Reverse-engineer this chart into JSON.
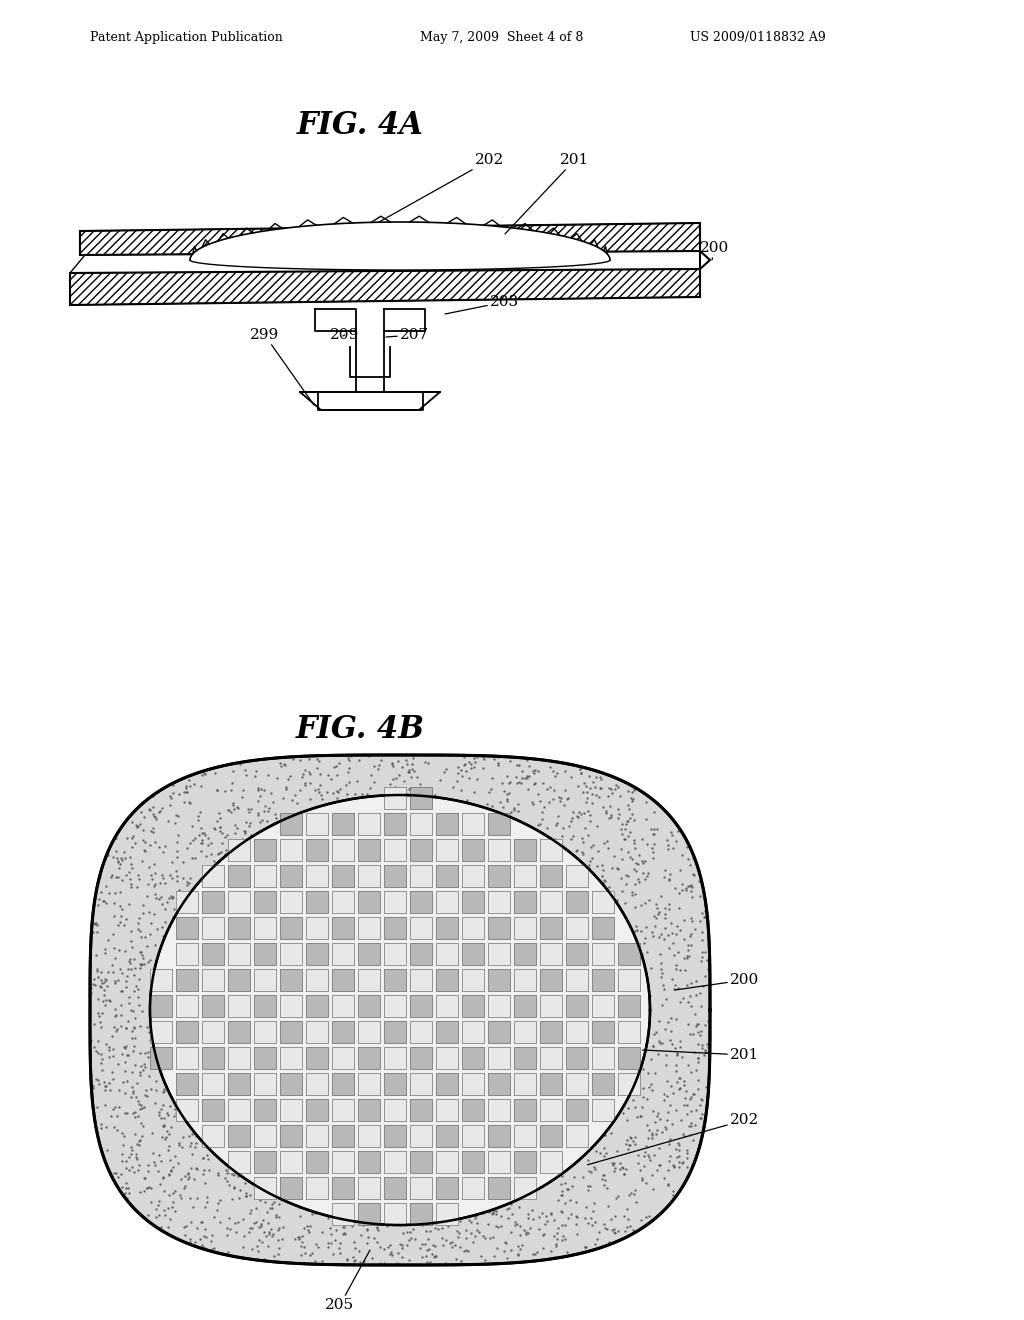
{
  "background_color": "#ffffff",
  "header_left": "Patent Application Publication",
  "header_mid": "May 7, 2009  Sheet 4 of 8",
  "header_right": "US 2009/0118832 A9",
  "fig4a_title": "FIG. 4A",
  "fig4b_title": "FIG. 4B",
  "line_color": "#000000",
  "hatch_color": "#000000",
  "stipple_color": "#888888",
  "weave_dark": "#aaaaaa",
  "weave_light": "#e8e8e8",
  "outer_fill": "#cccccc"
}
